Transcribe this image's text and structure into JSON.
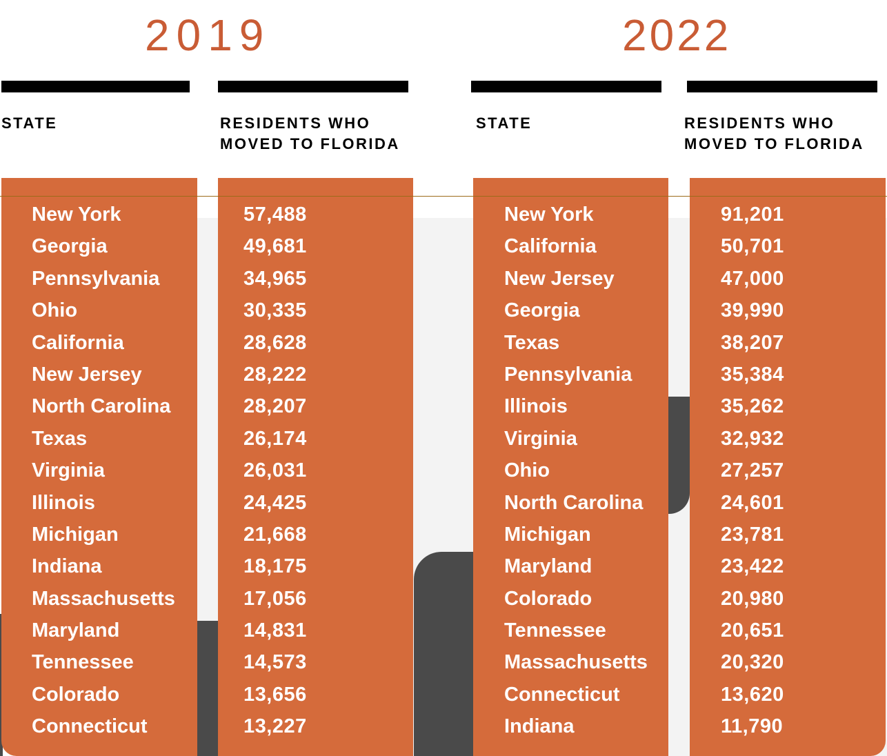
{
  "chart_data": {
    "type": "table",
    "tables": [
      {
        "year": "2019",
        "columns": [
          "STATE",
          "RESIDENTS WHO\nMOVED TO FLORIDA"
        ],
        "states": [
          "New York",
          "Georgia",
          "Pennsylvania",
          "Ohio",
          "California",
          "New Jersey",
          "North Carolina",
          "Texas",
          "Virginia",
          "Illinois",
          "Michigan",
          "Indiana",
          "Massachusetts",
          "Maryland",
          "Tennessee",
          "Colorado",
          "Connecticut"
        ],
        "values": [
          "57,488",
          "49,681",
          "34,965",
          "30,335",
          "28,628",
          "28,222",
          "28,207",
          "26,174",
          "26,031",
          "24,425",
          "21,668",
          "18,175",
          "17,056",
          "14,831",
          "14,573",
          "13,656",
          "13,227"
        ]
      },
      {
        "year": "2022",
        "columns": [
          "STATE",
          "RESIDENTS WHO\nMOVED TO FLORIDA"
        ],
        "states": [
          "New York",
          "California",
          "New Jersey",
          "Georgia",
          "Texas",
          "Pennsylvania",
          "Illinois",
          "Virginia",
          "Ohio",
          "North Carolina",
          "Michigan",
          "Maryland",
          "Colorado",
          "Tennessee",
          "Massachusetts",
          "Connecticut",
          "Indiana"
        ],
        "values": [
          "91,201",
          "50,701",
          "47,000",
          "39,990",
          "38,207",
          "35,384",
          "35,262",
          "32,932",
          "27,257",
          "24,601",
          "23,781",
          "23,422",
          "20,980",
          "20,651",
          "20,320",
          "13,620",
          "11,790"
        ]
      }
    ]
  },
  "colors": {
    "accent": "#d56b3b",
    "year_text": "#c95c35",
    "rule": "#000000"
  }
}
